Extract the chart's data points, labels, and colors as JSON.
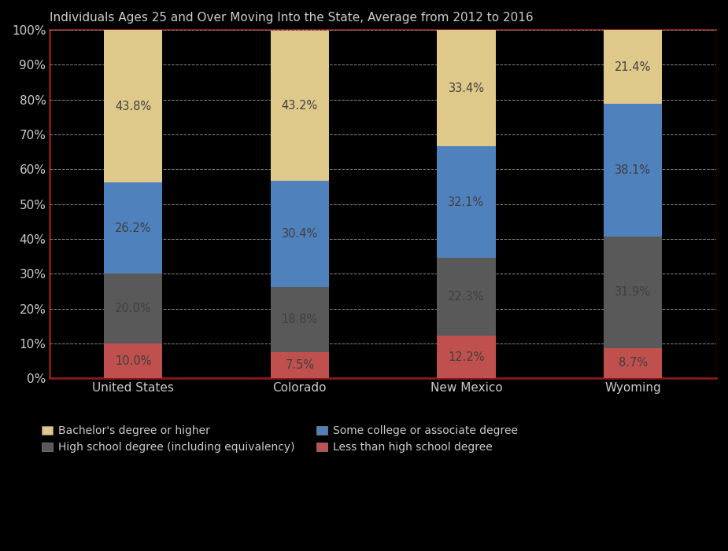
{
  "title": "Individuals Ages 25 and Over Moving Into the State, Average from 2012 to 2016",
  "categories": [
    "United States",
    "Colorado",
    "New Mexico",
    "Wyoming"
  ],
  "segments": {
    "Less than high school degree": [
      10.0,
      7.5,
      12.2,
      8.7
    ],
    "High school degree (including equivalency)": [
      20.0,
      18.8,
      22.3,
      31.9
    ],
    "Some college or associate degree": [
      26.2,
      30.4,
      32.1,
      38.1
    ],
    "Bachelor's degree or higher": [
      43.8,
      43.2,
      33.4,
      21.4
    ]
  },
  "bar_colors": {
    "Less than high school degree": "#C0504D",
    "High school degree (including equivalency)": "#595959",
    "Some college or associate degree": "#4F81BD",
    "Bachelor's degree or higher": "#DEC98A"
  },
  "legend_patch_colors": {
    "Bachelor's degree or higher": "#DEC98A",
    "Some college or associate degree": "#4F81BD",
    "High school degree (including equivalency)": "#595959",
    "Less than high school degree": "#C0504D"
  },
  "bar_width": 0.35,
  "ylim": [
    0,
    100
  ],
  "yticks": [
    0,
    10,
    20,
    30,
    40,
    50,
    60,
    70,
    80,
    90,
    100
  ],
  "ytick_labels": [
    "0%",
    "10%",
    "20%",
    "30%",
    "40%",
    "50%",
    "60%",
    "70%",
    "80%",
    "90%",
    "100%"
  ],
  "background_color": "#000000",
  "plot_bg_color": "#000000",
  "border_color_left": "#8B0000",
  "border_color_right": "#000000",
  "border_color_top": "#8B1A1A",
  "border_color_bottom": "#8B0000",
  "grid_color": "#888888",
  "text_color": "#CCCCCC",
  "bar_text_color": "#404040",
  "label_fontsize": 11,
  "title_fontsize": 11,
  "tick_fontsize": 11,
  "annotation_fontsize": 10.5,
  "segment_order": [
    "Less than high school degree",
    "High school degree (including equivalency)",
    "Some college or associate degree",
    "Bachelor's degree or higher"
  ],
  "legend_order": [
    "Bachelor's degree or higher",
    "Some college or associate degree",
    "High school degree (including equivalency)",
    "Less than high school degree"
  ]
}
